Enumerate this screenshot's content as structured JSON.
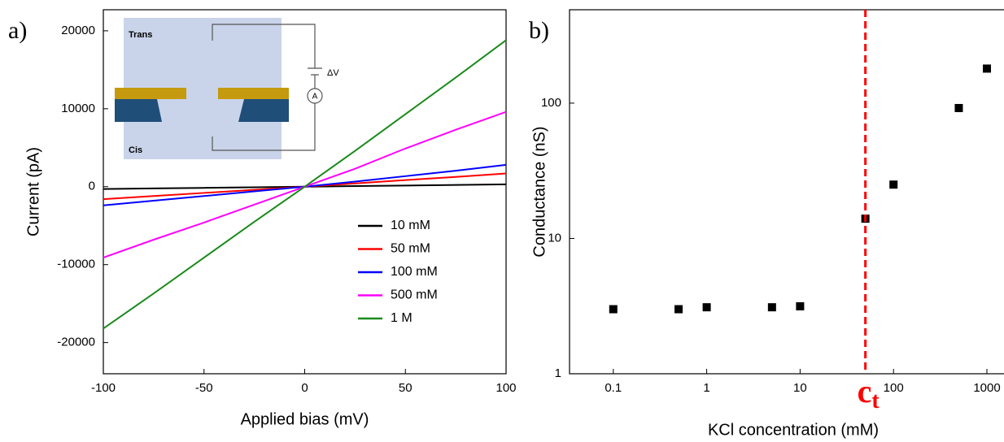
{
  "chart_data": [
    {
      "type": "line",
      "panel_label": "a)",
      "x_label": "Applied bias (mV)",
      "y_label": "Current (pA)",
      "x": [
        -100,
        -75,
        -50,
        -25,
        0,
        25,
        50,
        75,
        100
      ],
      "xlim": [
        -100,
        100
      ],
      "xticks": [
        -100,
        -50,
        0,
        50,
        100
      ],
      "ylim": [
        -24000,
        22700
      ],
      "yticks": [
        -20000,
        -10000,
        0,
        10000,
        20000
      ],
      "legend": "lower right",
      "series": [
        {
          "name": "10 mM",
          "color": "#000000",
          "values": [
            -300,
            -220,
            -150,
            -75,
            0,
            75,
            150,
            220,
            300
          ]
        },
        {
          "name": "50 mM",
          "color": "#ff0000",
          "values": [
            -1600,
            -1200,
            -800,
            -400,
            0,
            420,
            850,
            1250,
            1700
          ]
        },
        {
          "name": "100 mM",
          "color": "#0000ff",
          "values": [
            -2400,
            -1800,
            -1200,
            -600,
            0,
            650,
            1350,
            2050,
            2800
          ]
        },
        {
          "name": "500 mM",
          "color": "#ff00ff",
          "values": [
            -9100,
            -6800,
            -4600,
            -2300,
            0,
            2300,
            4900,
            7300,
            9600
          ]
        },
        {
          "name": "1 M",
          "color": "#1a8a1a",
          "values": [
            -18200,
            -13700,
            -9100,
            -4500,
            0,
            4600,
            9300,
            14000,
            18800
          ]
        }
      ],
      "inset": {
        "labels": [
          "Trans",
          "Cis",
          "ΔV",
          "A"
        ]
      }
    },
    {
      "type": "scatter",
      "panel_label": "b)",
      "x_label": "KCl concentration (mM)",
      "y_label": "Conductance (nS)",
      "x_scale": "log",
      "y_scale": "log",
      "xlim": [
        0.034,
        2100
      ],
      "xticks": [
        0.1,
        1,
        10,
        100,
        1000
      ],
      "ylim": [
        1,
        490
      ],
      "yticks": [
        1,
        10,
        100
      ],
      "color": "#000000",
      "x": [
        0.1,
        0.5,
        1,
        5,
        10,
        50,
        100,
        500,
        1000
      ],
      "values": [
        3.0,
        3.0,
        3.1,
        3.1,
        3.15,
        14,
        25,
        92,
        180
      ],
      "annotation": {
        "text": "c",
        "subscript": "t",
        "x": 50,
        "color": "#ff0000"
      }
    }
  ]
}
